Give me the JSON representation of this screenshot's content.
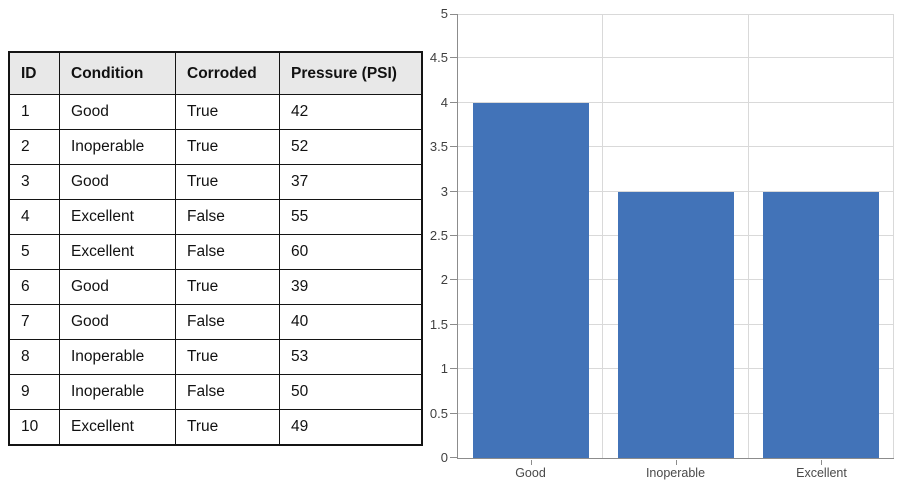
{
  "table": {
    "headers": [
      "ID",
      "Condition",
      "Corroded",
      "Pressure (PSI)"
    ],
    "rows": [
      [
        "1",
        "Good",
        "True",
        "42"
      ],
      [
        "2",
        "Inoperable",
        "True",
        "52"
      ],
      [
        "3",
        "Good",
        "True",
        "37"
      ],
      [
        "4",
        "Excellent",
        "False",
        "55"
      ],
      [
        "5",
        "Excellent",
        "False",
        "60"
      ],
      [
        "6",
        "Good",
        "True",
        "39"
      ],
      [
        "7",
        "Good",
        "False",
        "40"
      ],
      [
        "8",
        "Inoperable",
        "True",
        "53"
      ],
      [
        "9",
        "Inoperable",
        "False",
        "50"
      ],
      [
        "10",
        "Excellent",
        "True",
        "49"
      ]
    ]
  },
  "chart_data": {
    "type": "bar",
    "categories": [
      "Good",
      "Inoperable",
      "Excellent"
    ],
    "values": [
      4,
      3,
      3
    ],
    "title": "",
    "xlabel": "",
    "ylabel": "",
    "ylim": [
      0,
      5
    ],
    "ytick_step": 0.5,
    "ytick_labels": [
      "0",
      "0.5",
      "1",
      "1.5",
      "2",
      "2.5",
      "3",
      "3.5",
      "4",
      "4.5",
      "5"
    ],
    "grid": true,
    "legend_position": "none",
    "bar_color": "#4273b8",
    "gridline_color": "#d9d9d9",
    "axis_color": "#8c8c8c",
    "tick_label_color": "#3f3f3f",
    "category_label_color": "#4a4a4a"
  },
  "colors": {
    "table_header_bg": "#e8e8e8",
    "table_border": "#141414",
    "page_bg": "#ffffff"
  }
}
